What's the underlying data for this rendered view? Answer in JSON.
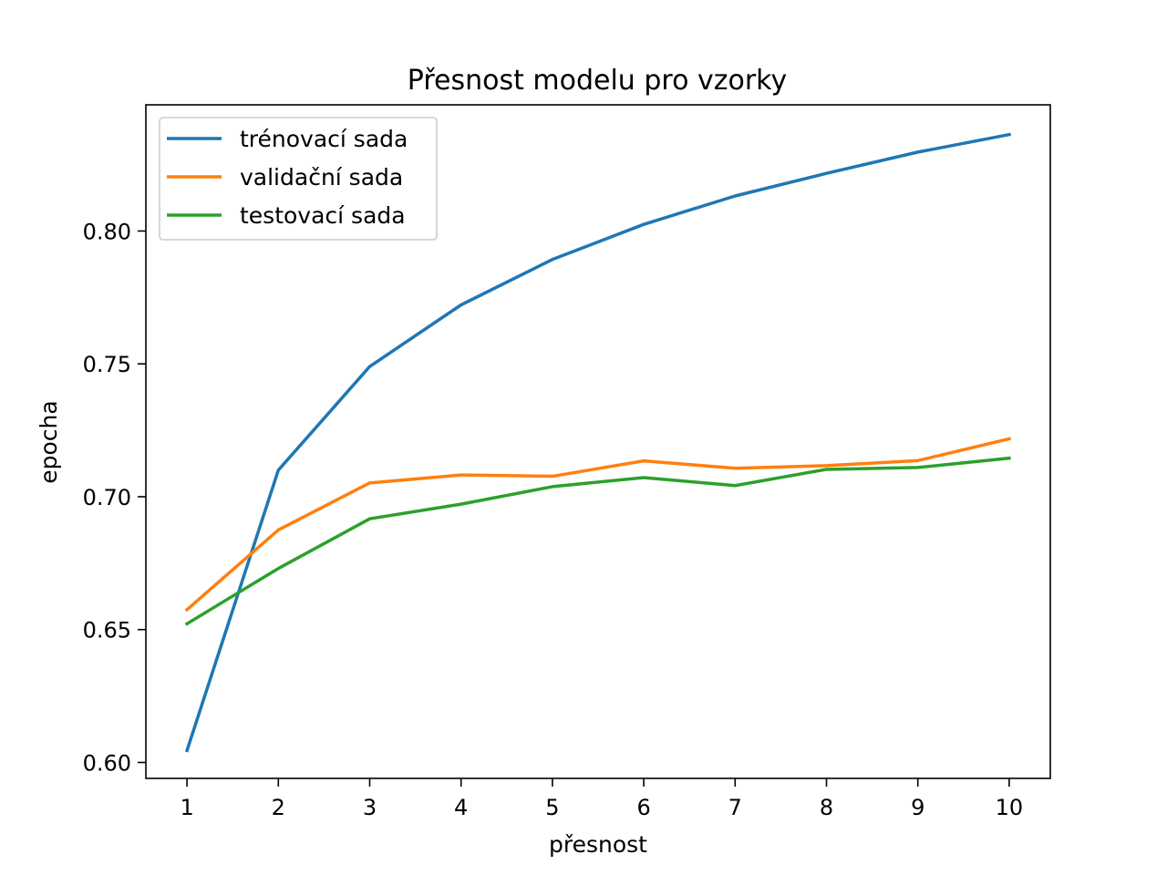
{
  "chart_data": {
    "type": "line",
    "title": "Přesnost modelu pro vzorky",
    "xlabel": "přesnost",
    "ylabel": "epocha",
    "x": [
      1,
      2,
      3,
      4,
      5,
      6,
      7,
      8,
      9,
      10
    ],
    "xlim": [
      0.55,
      10.45
    ],
    "ylim": [
      0.594,
      0.8475
    ],
    "xticks": [
      1,
      2,
      3,
      4,
      5,
      6,
      7,
      8,
      9,
      10
    ],
    "yticks": [
      0.6,
      0.65,
      0.7,
      0.75,
      0.8
    ],
    "ytick_labels": [
      "0.60",
      "0.65",
      "0.70",
      "0.75",
      "0.80"
    ],
    "grid": false,
    "legend_position": "top-left",
    "series": [
      {
        "name": "trénovací sada",
        "color": "#1f77b4",
        "values": [
          0.6045,
          0.71,
          0.749,
          0.7722,
          0.7893,
          0.8025,
          0.8132,
          0.8217,
          0.8297,
          0.8363
        ]
      },
      {
        "name": "validační sada",
        "color": "#ff7f0e",
        "values": [
          0.6575,
          0.6875,
          0.7052,
          0.7082,
          0.7077,
          0.7135,
          0.7107,
          0.7117,
          0.7136,
          0.7218
        ]
      },
      {
        "name": "testovací sada",
        "color": "#2ca02c",
        "values": [
          0.6522,
          0.673,
          0.6917,
          0.6972,
          0.7038,
          0.7072,
          0.7042,
          0.7103,
          0.711,
          0.7145
        ]
      }
    ]
  }
}
